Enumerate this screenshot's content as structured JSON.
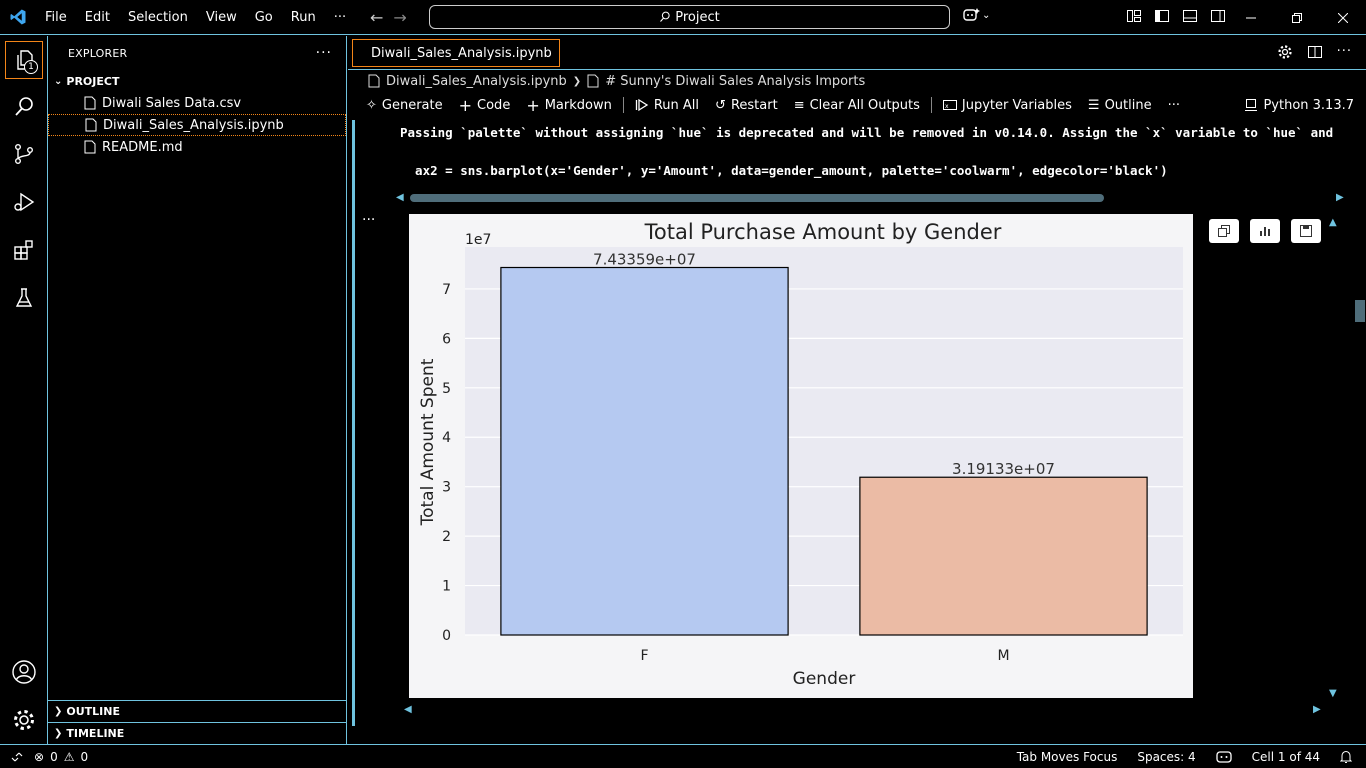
{
  "menu": [
    "File",
    "Edit",
    "Selection",
    "View",
    "Go",
    "Run",
    "···"
  ],
  "command_center": "Project",
  "explorer": {
    "title": "EXPLORER",
    "project_label": "PROJECT",
    "files": [
      "Diwali Sales Data.csv",
      "Diwali_Sales_Analysis.ipynb",
      "README.md"
    ],
    "outline_label": "OUTLINE",
    "timeline_label": "TIMELINE",
    "badge": "1"
  },
  "editor": {
    "tab_title": "Diwali_Sales_Analysis.ipynb",
    "breadcrumb": [
      "Diwali_Sales_Analysis.ipynb",
      "# Sunny's Diwali Sales Analysis Imports"
    ],
    "toolbar": {
      "generate": "Generate",
      "code": "Code",
      "markdown": "Markdown",
      "run_all": "Run All",
      "restart": "Restart",
      "clear_outputs": "Clear All Outputs",
      "variables": "Jupyter Variables",
      "outline": "Outline",
      "more": "···",
      "kernel": "Python 3.13.7"
    },
    "output_warning": "Passing `palette` without assigning `hue` is deprecated and will be removed in v0.14.0. Assign the `x` variable to `hue` and",
    "output_code": "  ax2 = sns.barplot(x='Gender', y='Amount', data=gender_amount, palette='coolwarm', edgecolor='black')",
    "cell_more": "···"
  },
  "chart_data": {
    "type": "bar",
    "title": "Total Purchase Amount by Gender",
    "xlabel": "Gender",
    "ylabel": "Total Amount Spent",
    "scale_label": "1e7",
    "categories": [
      "F",
      "M"
    ],
    "values": [
      74335900,
      31913300
    ],
    "data_labels": [
      "7.43359e+07",
      "3.19133e+07"
    ],
    "colors": [
      "#b5c9f1",
      "#ebbba5"
    ],
    "y_ticks": [
      0,
      1,
      2,
      3,
      4,
      5,
      6,
      7
    ],
    "ylim": [
      0,
      7.43359
    ],
    "grid": true
  },
  "status": {
    "errors": "0",
    "warnings": "0",
    "tab_focus": "Tab Moves Focus",
    "spaces": "Spaces: 4",
    "cell": "Cell 1 of 44"
  }
}
